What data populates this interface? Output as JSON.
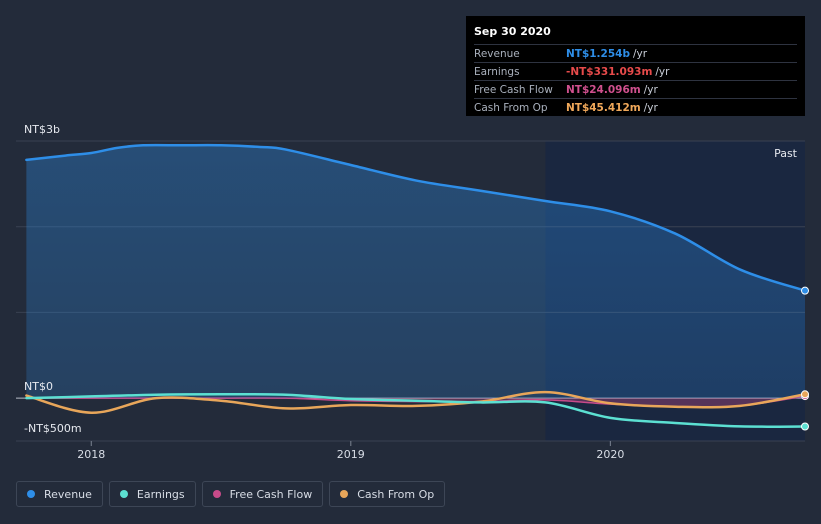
{
  "tooltip": {
    "date": "Sep 30 2020",
    "rows": [
      {
        "label": "Revenue",
        "value": "NT$1.254b",
        "unit": "/yr",
        "color": "#2e8ee8"
      },
      {
        "label": "Earnings",
        "value": "-NT$331.093m",
        "unit": "/yr",
        "color": "#e84b4b"
      },
      {
        "label": "Free Cash Flow",
        "value": "NT$24.096m",
        "unit": "/yr",
        "color": "#d0508e"
      },
      {
        "label": "Cash From Op",
        "value": "NT$45.412m",
        "unit": "/yr",
        "color": "#f0a85a"
      }
    ]
  },
  "legend": [
    {
      "label": "Revenue",
      "color": "#2e8ee8"
    },
    {
      "label": "Earnings",
      "color": "#5ce0d2"
    },
    {
      "label": "Free Cash Flow",
      "color": "#c84b8a"
    },
    {
      "label": "Cash From Op",
      "color": "#e8a65a"
    }
  ],
  "chart_data": {
    "type": "line",
    "y_labels": {
      "top": "NT$3b",
      "zero": "NT$0",
      "bottom": "-NT$500m"
    },
    "ylim": [
      -500,
      3000
    ],
    "xlim": [
      2017.71,
      2020.75
    ],
    "x_ticks": [
      {
        "value": 2018.0,
        "label": "2018"
      },
      {
        "value": 2019.0,
        "label": "2019"
      },
      {
        "value": 2020.0,
        "label": "2020"
      }
    ],
    "past_label": "Past",
    "past_start": 2019.75,
    "series": [
      {
        "name": "Revenue",
        "color": "#2e8ee8",
        "fill": true,
        "x": [
          2017.75,
          2017.9,
          2018.0,
          2018.1,
          2018.2,
          2018.35,
          2018.5,
          2018.65,
          2018.75,
          2019.0,
          2019.25,
          2019.5,
          2019.75,
          2020.0,
          2020.25,
          2020.5,
          2020.75
        ],
        "y": [
          2780,
          2830,
          2860,
          2920,
          2950,
          2950,
          2950,
          2930,
          2900,
          2720,
          2540,
          2420,
          2300,
          2180,
          1920,
          1500,
          1254
        ]
      },
      {
        "name": "Earnings",
        "color": "#5ce0d2",
        "fill": false,
        "x": [
          2017.75,
          2018.0,
          2018.25,
          2018.5,
          2018.75,
          2019.0,
          2019.25,
          2019.5,
          2019.75,
          2020.0,
          2020.25,
          2020.5,
          2020.75
        ],
        "y": [
          0,
          20,
          40,
          45,
          40,
          -10,
          -30,
          -50,
          -50,
          -230,
          -290,
          -330,
          -331
        ]
      },
      {
        "name": "Free Cash Flow",
        "color": "#c84b8a",
        "fill": true,
        "x": [
          2017.75,
          2018.0,
          2018.25,
          2018.5,
          2018.75,
          2019.0,
          2019.25,
          2019.5,
          2019.75,
          2020.0,
          2020.25,
          2020.5,
          2020.75
        ],
        "y": [
          0,
          0,
          0,
          0,
          0,
          -30,
          -40,
          -40,
          -20,
          -70,
          -100,
          -90,
          24
        ]
      },
      {
        "name": "Cash From Op",
        "color": "#e8a65a",
        "fill": false,
        "x": [
          2017.75,
          2018.0,
          2018.25,
          2018.5,
          2018.75,
          2019.0,
          2019.25,
          2019.5,
          2019.75,
          2020.0,
          2020.25,
          2020.5,
          2020.75
        ],
        "y": [
          30,
          -170,
          0,
          -30,
          -120,
          -80,
          -90,
          -40,
          70,
          -60,
          -100,
          -90,
          45
        ]
      }
    ]
  }
}
